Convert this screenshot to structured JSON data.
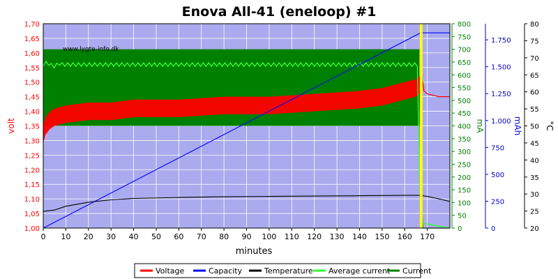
{
  "chart_data": {
    "type": "line",
    "title": "Enova All-41 (eneloop) #1",
    "watermark": "www.lygte-info.dk",
    "xlabel": "minutes",
    "xlim": [
      0,
      180
    ],
    "x_ticks": [
      0,
      10,
      20,
      30,
      40,
      50,
      60,
      70,
      80,
      90,
      100,
      110,
      120,
      130,
      140,
      150,
      160,
      170
    ],
    "axes": {
      "volt": {
        "label": "volt",
        "color": "#ff0000",
        "range": [
          1.0,
          1.7
        ],
        "ticks": [
          "1,00",
          "1,05",
          "1,10",
          "1,15",
          "1,20",
          "1,25",
          "1,30",
          "1,35",
          "1,40",
          "1,45",
          "1,50",
          "1,55",
          "1,60",
          "1,65",
          "1,70"
        ]
      },
      "mA": {
        "label": "mA",
        "color": "#008000",
        "range": [
          0,
          800
        ],
        "ticks": [
          "0",
          "50",
          "100",
          "150",
          "200",
          "250",
          "300",
          "350",
          "400",
          "450",
          "500",
          "550",
          "600",
          "650",
          "700",
          "750",
          "800"
        ]
      },
      "mAh": {
        "label": "mAh",
        "color": "#0000cc",
        "range": [
          0,
          1900
        ],
        "ticks": [
          "0",
          "250",
          "500",
          "750",
          "1.000",
          "1.250",
          "1.500",
          "1.750"
        ]
      },
      "temp": {
        "label": "°C",
        "color": "#000000",
        "range": [
          20,
          80
        ],
        "ticks": [
          "20",
          "25",
          "30",
          "35",
          "40",
          "45",
          "50",
          "55",
          "60",
          "65",
          "70",
          "75",
          "80"
        ]
      }
    },
    "series": [
      {
        "name": "Voltage",
        "color": "#ff0000",
        "axis": "volt",
        "x": [
          0,
          1,
          3,
          5,
          10,
          20,
          30,
          40,
          60,
          80,
          100,
          120,
          140,
          150,
          160,
          165,
          168,
          168.5,
          170,
          175,
          180
        ],
        "y": [
          1.32,
          1.35,
          1.37,
          1.38,
          1.39,
          1.4,
          1.4,
          1.41,
          1.41,
          1.42,
          1.42,
          1.43,
          1.44,
          1.45,
          1.47,
          1.48,
          1.5,
          1.47,
          1.46,
          1.45,
          1.45
        ],
        "band_half_width": 0.03
      },
      {
        "name": "Capacity",
        "color": "#0000ff",
        "axis": "mAh",
        "x": [
          0,
          167,
          180
        ],
        "y": [
          0,
          1815,
          1815
        ]
      },
      {
        "name": "Temperature",
        "color": "#000000",
        "axis": "temp",
        "x": [
          0,
          5,
          10,
          20,
          30,
          40,
          60,
          80,
          100,
          120,
          140,
          160,
          167,
          170,
          175,
          180
        ],
        "y": [
          24.9,
          25.3,
          26.4,
          27.6,
          28.3,
          28.7,
          29.0,
          29.2,
          29.3,
          29.4,
          29.5,
          29.6,
          29.6,
          29.3,
          28.6,
          27.8
        ]
      },
      {
        "name": "Average current",
        "color": "#33ff33",
        "axis": "mA",
        "x": [
          0,
          2,
          4,
          6,
          10,
          20,
          40,
          80,
          120,
          160,
          166.5,
          167,
          170,
          180
        ],
        "y": [
          640,
          650,
          628,
          645,
          640,
          636,
          640,
          640,
          640,
          640,
          630,
          20,
          0,
          0
        ]
      },
      {
        "name": "Current",
        "color": "#008000",
        "axis": "mA",
        "x": [
          0,
          166.5,
          167,
          168,
          180
        ],
        "y": [
          570,
          570,
          200,
          0,
          0
        ],
        "band_low": 400,
        "band_high": 700
      }
    ],
    "events": [
      {
        "type": "vertical-marker",
        "color": "#ffff00",
        "x": 167.3
      }
    ],
    "legend": {
      "placement": "bottom",
      "items": [
        {
          "label": "Voltage",
          "color": "#ff0000"
        },
        {
          "label": "Capacity",
          "color": "#0000ff"
        },
        {
          "label": "Temperature",
          "color": "#000000"
        },
        {
          "label": "Average current",
          "color": "#33ff33"
        },
        {
          "label": "Current",
          "color": "#008000"
        }
      ]
    },
    "grid": true,
    "plot_background": "#aaaaee"
  }
}
